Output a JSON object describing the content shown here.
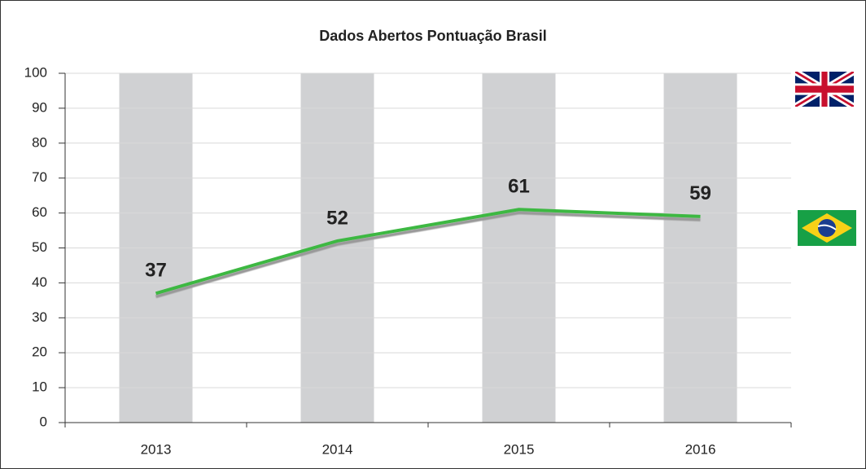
{
  "chart_data": {
    "type": "line",
    "title": "Dados Abertos Pontuação Brasil",
    "categories": [
      "2013",
      "2014",
      "2015",
      "2016"
    ],
    "values": [
      37,
      52,
      61,
      59
    ],
    "color": "#3db843",
    "ylim": [
      0,
      100
    ],
    "yticks": [
      0,
      10,
      20,
      30,
      40,
      50,
      60,
      70,
      80,
      90,
      100
    ],
    "grid": true
  }
}
